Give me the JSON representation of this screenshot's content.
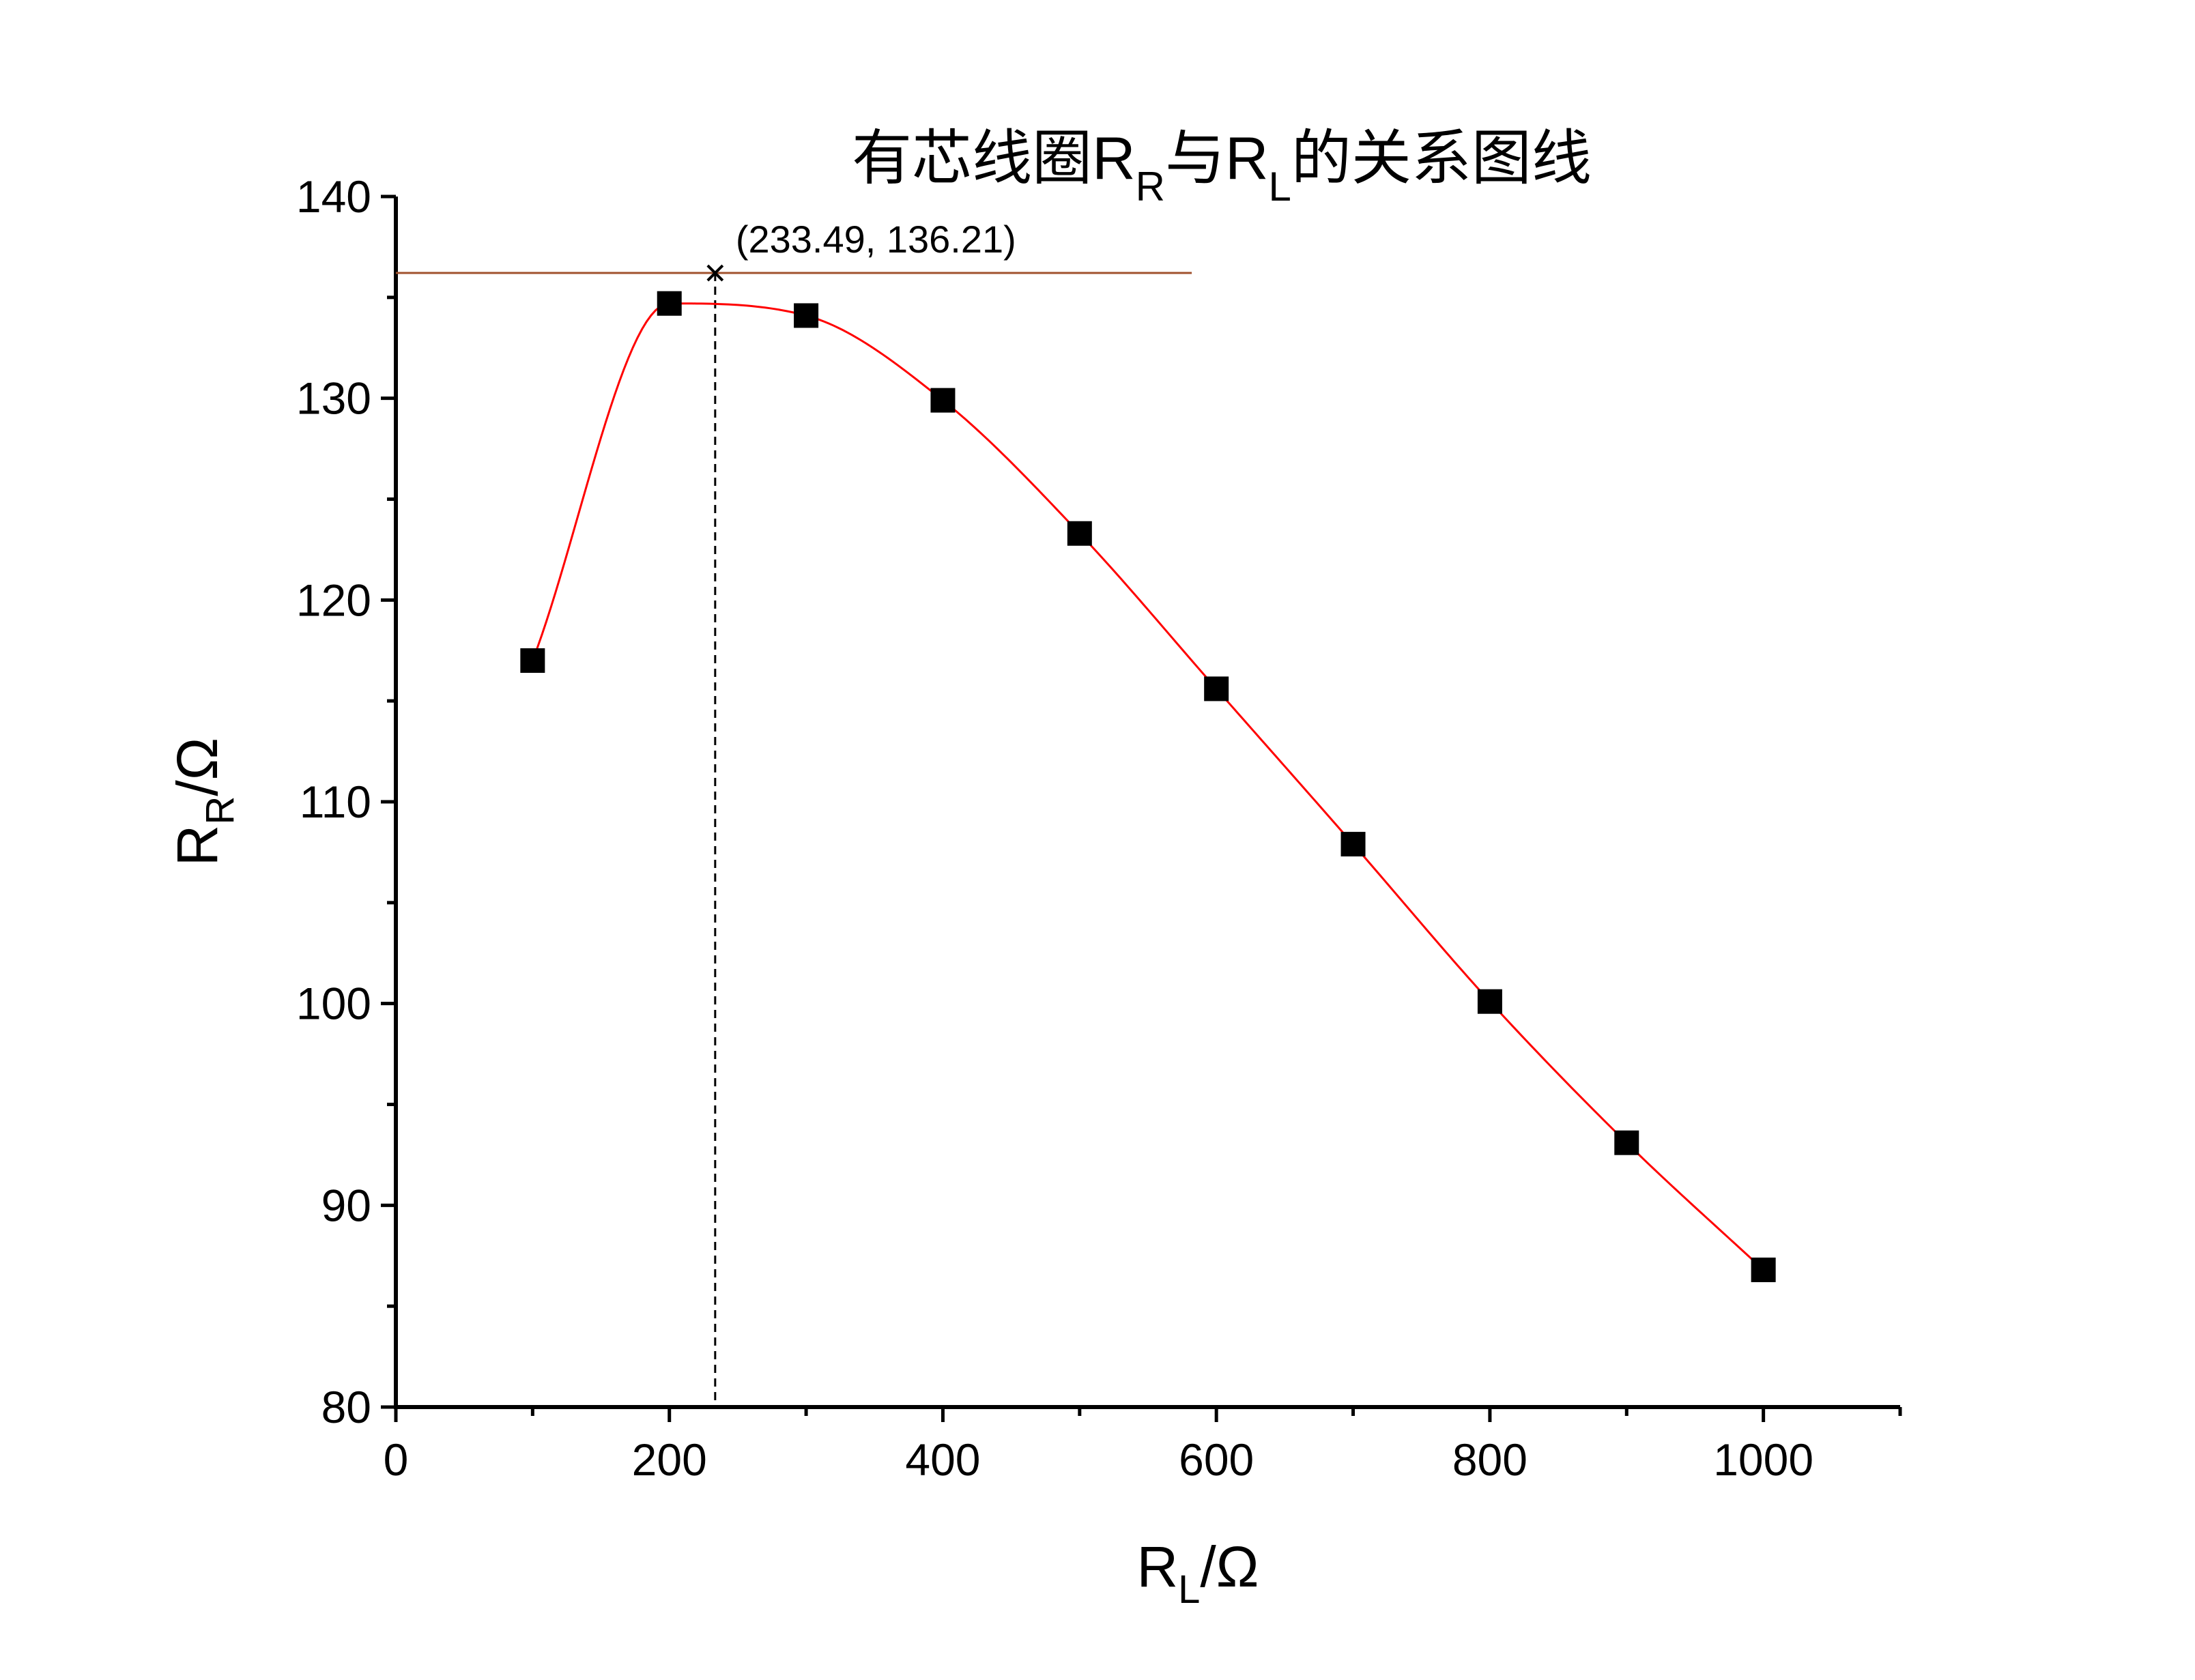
{
  "chart_data": {
    "type": "line",
    "title": {
      "prefix": "有芯线圈R",
      "sub1": "R",
      "middle": "与R",
      "sub2": "L",
      "suffix": "的关系图线"
    },
    "xlabel": {
      "main": "R",
      "sub": "L",
      "unit": "/Ω"
    },
    "ylabel": {
      "main": "R",
      "sub": "R",
      "unit": "/Ω"
    },
    "xlim": [
      0,
      1100
    ],
    "ylim": [
      80,
      140
    ],
    "xticks": [
      0,
      200,
      400,
      600,
      800,
      1000
    ],
    "yticks": [
      80,
      90,
      100,
      110,
      120,
      130,
      140
    ],
    "grid": false,
    "series": [
      {
        "x": [
          100,
          200,
          300,
          400,
          500,
          600,
          700,
          800,
          900,
          1000
        ],
        "y": [
          117.0,
          134.7,
          134.1,
          129.9,
          123.3,
          115.6,
          107.9,
          100.1,
          93.1,
          86.8
        ],
        "marker": "square",
        "marker_color": "#000000",
        "line_color": "#ff0000",
        "smooth": true
      }
    ],
    "annotation": {
      "text": "(233.49, 136.21)",
      "x": 233.49,
      "y": 136.21,
      "marker": "cross",
      "hline_color": "#a0522d",
      "hline_x_end": 582,
      "vline_style": "dashed"
    }
  }
}
